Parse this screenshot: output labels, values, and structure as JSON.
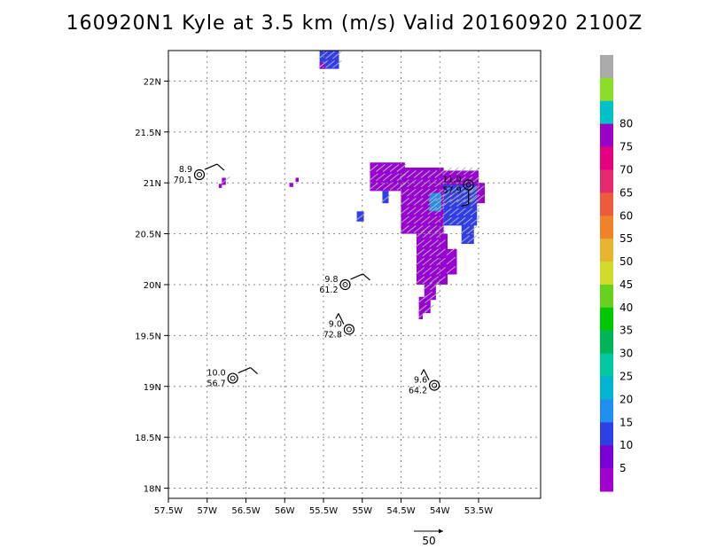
{
  "title": "160920N1 Kyle at 3.5 km (m/s) Valid 20160920 2100Z",
  "chart_data": {
    "type": "heatmap",
    "title": "160920N1 Kyle at 3.5 km (m/s) Valid 20160920 2100Z",
    "xlim": [
      -57.5,
      -52.7
    ],
    "ylim": [
      17.9,
      22.3
    ],
    "grid": true,
    "x_ticks": [
      {
        "value": -57.5,
        "label": "57.5W"
      },
      {
        "value": -57,
        "label": "57W"
      },
      {
        "value": -56.5,
        "label": "56.5W"
      },
      {
        "value": -56,
        "label": "56W"
      },
      {
        "value": -55.5,
        "label": "55.5W"
      },
      {
        "value": -55,
        "label": "55W"
      },
      {
        "value": -54.5,
        "label": "54.5W"
      },
      {
        "value": -54,
        "label": "54W"
      },
      {
        "value": -53.5,
        "label": "53.5W"
      }
    ],
    "y_ticks": [
      {
        "value": 18,
        "label": "18N"
      },
      {
        "value": 18.5,
        "label": "18.5N"
      },
      {
        "value": 19,
        "label": "19N"
      },
      {
        "value": 19.5,
        "label": "19.5N"
      },
      {
        "value": 20,
        "label": "20N"
      },
      {
        "value": 20.5,
        "label": "20.5N"
      },
      {
        "value": 21,
        "label": "21N"
      },
      {
        "value": 21.5,
        "label": "21.5N"
      },
      {
        "value": 22,
        "label": "22N"
      }
    ],
    "colorbar": {
      "labels": [
        "5",
        "10",
        "15",
        "20",
        "25",
        "30",
        "35",
        "40",
        "45",
        "50",
        "55",
        "60",
        "65",
        "70",
        "75",
        "80"
      ],
      "colors": [
        "#a000d0",
        "#7a00d6",
        "#2f3ee6",
        "#1e8ef0",
        "#00b4d2",
        "#00c8a0",
        "#00b45a",
        "#00c800",
        "#66d21e",
        "#d2dc28",
        "#e6b42d",
        "#f08228",
        "#f05a3c",
        "#e6286e",
        "#e6007f",
        "#9a00c8",
        "#00c0c8",
        "#8cdc28",
        "#aaaaaa"
      ]
    },
    "wind_areas": [
      {
        "lon_min": -55.55,
        "lon_max": -55.3,
        "lat_min": 22.12,
        "lat_max": 22.3,
        "speed": 10
      },
      {
        "lon_min": -55.55,
        "lon_max": -55.48,
        "lat_min": 22.12,
        "lat_max": 22.18,
        "speed": 5
      },
      {
        "lon_min": -54.9,
        "lon_max": -54.45,
        "lat_min": 20.92,
        "lat_max": 21.2,
        "speed": 5
      },
      {
        "lon_min": -54.5,
        "lon_max": -53.95,
        "lat_min": 20.5,
        "lat_max": 21.15,
        "speed": 5
      },
      {
        "lon_min": -54.3,
        "lon_max": -53.9,
        "lat_min": 20.0,
        "lat_max": 20.5,
        "speed": 5
      },
      {
        "lon_min": -54.2,
        "lon_max": -54.05,
        "lat_min": 19.85,
        "lat_max": 20.02,
        "speed": 5
      },
      {
        "lon_min": -54.27,
        "lon_max": -54.12,
        "lat_min": 19.72,
        "lat_max": 19.88,
        "speed": 5
      },
      {
        "lon_min": -54.27,
        "lon_max": -54.22,
        "lat_min": 19.66,
        "lat_max": 19.74,
        "speed": 5
      },
      {
        "lon_min": -53.95,
        "lon_max": -53.5,
        "lat_min": 20.8,
        "lat_max": 21.12,
        "speed": 5
      },
      {
        "lon_min": -53.62,
        "lon_max": -53.42,
        "lat_min": 20.8,
        "lat_max": 21.0,
        "speed": 5
      },
      {
        "lon_min": -53.9,
        "lon_max": -53.78,
        "lat_min": 20.1,
        "lat_max": 20.35,
        "speed": 5
      },
      {
        "lon_min": -53.95,
        "lon_max": -53.52,
        "lat_min": 20.58,
        "lat_max": 20.98,
        "speed": 10
      },
      {
        "lon_min": -53.72,
        "lon_max": -53.56,
        "lat_min": 20.4,
        "lat_max": 20.62,
        "speed": 10
      },
      {
        "lon_min": -54.74,
        "lon_max": -54.66,
        "lat_min": 20.8,
        "lat_max": 20.92,
        "speed": 10
      },
      {
        "lon_min": -55.07,
        "lon_max": -54.98,
        "lat_min": 20.62,
        "lat_max": 20.72,
        "speed": 10
      },
      {
        "lon_min": -54.13,
        "lon_max": -53.98,
        "lat_min": 20.72,
        "lat_max": 20.9,
        "speed": 15
      },
      {
        "lon_min": -56.81,
        "lon_max": -56.76,
        "lat_min": 20.98,
        "lat_max": 21.05,
        "speed": 5
      },
      {
        "lon_min": -56.85,
        "lon_max": -56.81,
        "lat_min": 20.95,
        "lat_max": 20.99,
        "speed": 5
      },
      {
        "lon_min": -55.94,
        "lon_max": -55.89,
        "lat_min": 20.96,
        "lat_max": 21.0,
        "speed": 5
      },
      {
        "lon_min": -55.86,
        "lon_max": -55.82,
        "lat_min": 21.01,
        "lat_max": 21.05,
        "speed": 5
      }
    ],
    "storm_fixes": [
      {
        "lon": -57.1,
        "lat": 21.08,
        "speed": "8.9",
        "distance": "70.1",
        "barb": "ne"
      },
      {
        "lon": -53.63,
        "lat": 20.98,
        "speed": "11.0",
        "distance": "57.9",
        "barb": "s"
      },
      {
        "lon": -55.22,
        "lat": 20.0,
        "speed": "9.8",
        "distance": "61.2",
        "barb": "ne"
      },
      {
        "lon": -55.17,
        "lat": 19.56,
        "speed": "9.0",
        "distance": "72.8",
        "barb": "nw"
      },
      {
        "lon": -56.67,
        "lat": 19.08,
        "speed": "10.0",
        "distance": "56.7",
        "barb": "ne"
      },
      {
        "lon": -54.07,
        "lat": 19.01,
        "speed": "9.6",
        "distance": "64.2",
        "barb": "nw"
      }
    ],
    "reference_vector": {
      "label": "50"
    }
  }
}
